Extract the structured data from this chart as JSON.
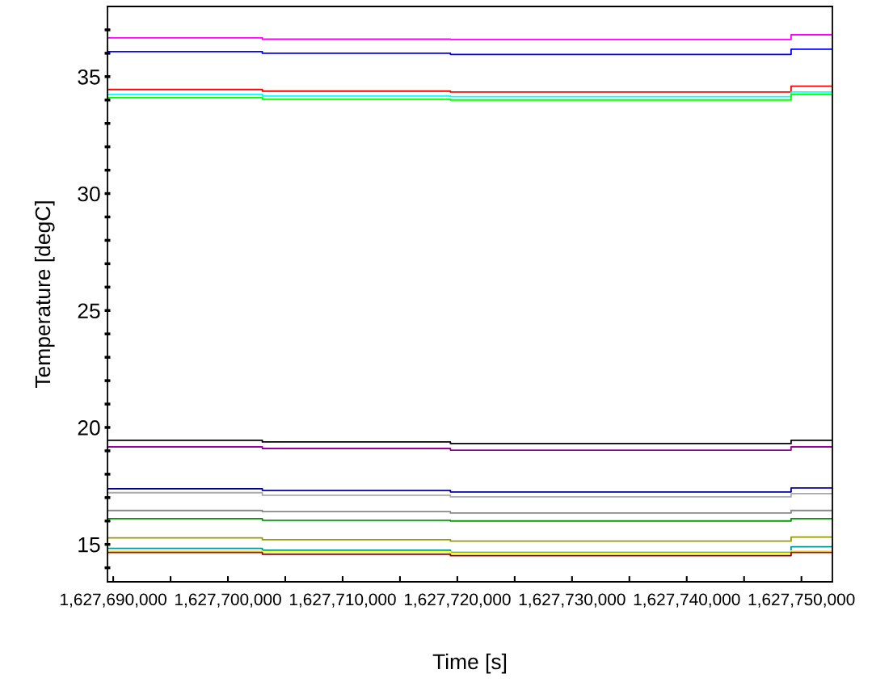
{
  "chart_data": {
    "type": "step",
    "xlabel": "Time [s]",
    "ylabel": "Temperature [degC]",
    "xlim": [
      1627689500,
      1627752700
    ],
    "ylim": [
      13.4,
      38
    ],
    "xticks": [
      {
        "value": 1627690000,
        "label": "1,627,690,000"
      },
      {
        "value": 1627695000,
        "label": null
      },
      {
        "value": 1627700000,
        "label": "1,627,700,000"
      },
      {
        "value": 1627705000,
        "label": null
      },
      {
        "value": 1627710000,
        "label": "1,627,710,000"
      },
      {
        "value": 1627715000,
        "label": null
      },
      {
        "value": 1627720000,
        "label": "1,627,720,000"
      },
      {
        "value": 1627725000,
        "label": null
      },
      {
        "value": 1627730000,
        "label": "1,627,730,000"
      },
      {
        "value": 1627735000,
        "label": null
      },
      {
        "value": 1627740000,
        "label": "1,627,740,000"
      },
      {
        "value": 1627745000,
        "label": null
      },
      {
        "value": 1627750000,
        "label": "1,627,750,000"
      }
    ],
    "yticks": [
      {
        "value": 14,
        "label": null
      },
      15,
      {
        "value": 16,
        "label": null
      },
      {
        "value": 17,
        "label": null
      },
      {
        "value": 18,
        "label": null
      },
      {
        "value": 19,
        "label": null
      },
      20,
      {
        "value": 21,
        "label": null
      },
      {
        "value": 22,
        "label": null
      },
      {
        "value": 23,
        "label": null
      },
      {
        "value": 24,
        "label": null
      },
      25,
      {
        "value": 26,
        "label": null
      },
      {
        "value": 27,
        "label": null
      },
      {
        "value": 28,
        "label": null
      },
      {
        "value": 29,
        "label": null
      },
      30,
      {
        "value": 31,
        "label": null
      },
      {
        "value": 32,
        "label": null
      },
      {
        "value": 33,
        "label": null
      },
      {
        "value": 34,
        "label": null
      },
      35,
      {
        "value": 36,
        "label": null
      },
      {
        "value": 37,
        "label": null
      }
    ],
    "grid": false,
    "legend": false,
    "x": [
      1627689500,
      1627703000,
      1627719400,
      1627749100,
      1627752700
    ],
    "series": [
      {
        "color": "#ff00ff",
        "values": [
          36.66,
          36.6,
          36.59,
          36.79,
          36.79
        ]
      },
      {
        "color": "#0000ff",
        "values": [
          36.07,
          36.0,
          35.95,
          36.17,
          36.17
        ]
      },
      {
        "color": "#ff0000",
        "values": [
          34.45,
          34.38,
          34.34,
          34.59,
          34.59
        ]
      },
      {
        "color": "#00ffff",
        "values": [
          34.24,
          34.17,
          34.14,
          34.34,
          34.34
        ]
      },
      {
        "color": "#00ff00",
        "values": [
          34.1,
          34.03,
          34.0,
          34.24,
          34.24
        ]
      },
      {
        "color": "#000000",
        "values": [
          19.45,
          19.38,
          19.31,
          19.45,
          19.45
        ]
      },
      {
        "color": "#990099",
        "values": [
          19.17,
          19.1,
          19.03,
          19.17,
          19.17
        ]
      },
      {
        "color": "#000099",
        "values": [
          17.38,
          17.31,
          17.24,
          17.41,
          17.41
        ]
      },
      {
        "color": "#aaaaaa",
        "values": [
          17.21,
          17.1,
          17.03,
          17.17,
          17.17
        ]
      },
      {
        "color": "#888888",
        "values": [
          16.45,
          16.4,
          16.34,
          16.45,
          16.45
        ]
      },
      {
        "color": "#009900",
        "values": [
          16.1,
          16.03,
          16.0,
          16.1,
          16.1
        ]
      },
      {
        "color": "#999900",
        "values": [
          15.28,
          15.2,
          15.14,
          15.31,
          15.31
        ]
      },
      {
        "color": "#009999",
        "values": [
          14.83,
          14.75,
          14.66,
          14.9,
          14.9
        ]
      },
      {
        "color": "#ffff00",
        "values": [
          14.72,
          14.68,
          14.62,
          14.72,
          14.72
        ]
      },
      {
        "color": "#990000",
        "values": [
          14.66,
          14.58,
          14.52,
          14.66,
          14.66
        ]
      }
    ]
  }
}
